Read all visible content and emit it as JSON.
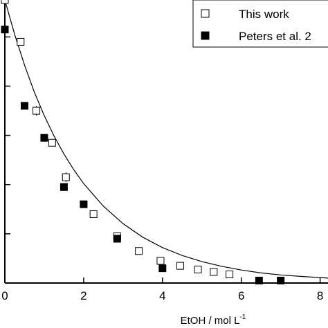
{
  "chart_data": {
    "type": "scatter",
    "xlabel": "EtOH / mol L",
    "xlabel_superscript": "-1",
    "xlim": [
      0,
      8.2
    ],
    "ylim": [
      0,
      1.15
    ],
    "x_ticks": [
      0,
      2,
      4,
      6,
      8
    ],
    "x_tick_labels": [
      "0",
      "2",
      "4",
      "6",
      "8"
    ],
    "y_ticks": [
      0.2,
      0.4,
      0.6,
      0.8,
      1.0
    ],
    "legend_position": "top-right",
    "series": [
      {
        "name": "This work",
        "marker": "open-square",
        "x": [
          0.0,
          0.4,
          0.8,
          1.2,
          1.55,
          2.25,
          2.85,
          3.4,
          3.95,
          4.45,
          4.9,
          5.3,
          5.7
        ],
        "y": [
          1.15,
          0.98,
          0.7,
          0.57,
          0.43,
          0.28,
          0.19,
          0.13,
          0.09,
          0.07,
          0.055,
          0.045,
          0.035
        ],
        "err": [
          0.0,
          0.0,
          0.02,
          0.0,
          0.02,
          0.0,
          0.01,
          0.0,
          0.0,
          0.0,
          0.0,
          0.0,
          0.0
        ]
      },
      {
        "name": "Peters et al. 2",
        "marker": "filled-square",
        "x": [
          0.0,
          0.5,
          1.0,
          1.5,
          2.0,
          2.85,
          4.0,
          6.45,
          7.0
        ],
        "y": [
          1.03,
          0.72,
          0.59,
          0.39,
          0.32,
          0.18,
          0.06,
          0.01,
          0.01
        ]
      }
    ],
    "fit_curve": {
      "style": "solid-line",
      "x": [
        0.0,
        0.25,
        0.5,
        0.75,
        1.0,
        1.25,
        1.5,
        1.75,
        2.0,
        2.5,
        3.0,
        3.5,
        4.0,
        4.5,
        5.0,
        5.5,
        6.0,
        6.5,
        7.0,
        7.5,
        8.2
      ],
      "y": [
        1.15,
        1.01,
        0.885,
        0.775,
        0.68,
        0.597,
        0.524,
        0.46,
        0.404,
        0.312,
        0.241,
        0.186,
        0.144,
        0.112,
        0.087,
        0.068,
        0.053,
        0.041,
        0.033,
        0.027,
        0.02
      ]
    }
  }
}
